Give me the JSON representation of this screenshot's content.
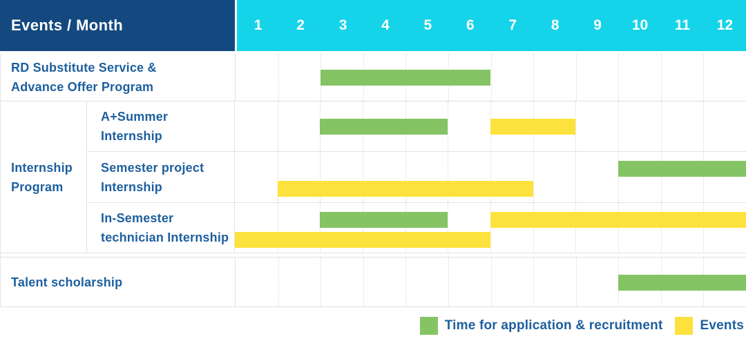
{
  "colors": {
    "header_navy": "#14497f",
    "header_cyan": "#15d3e9",
    "label_text": "#1d5f9e",
    "application": "#84c464",
    "event": "#fde23d",
    "grid_line": "#e2e2e2"
  },
  "header": {
    "title": "Events / Month",
    "months": [
      "1",
      "2",
      "3",
      "4",
      "5",
      "6",
      "7",
      "8",
      "9",
      "10",
      "11",
      "12"
    ]
  },
  "group": {
    "name": "Internship Program",
    "label_lines": [
      "Internship",
      "Program"
    ]
  },
  "legend": {
    "items": [
      {
        "kind": "application",
        "label": "Time for application & recruitment"
      },
      {
        "kind": "event",
        "label": "Events"
      }
    ]
  },
  "chart_data": {
    "type": "gantt",
    "x_axis": {
      "unit": "month",
      "ticks": [
        1,
        2,
        3,
        4,
        5,
        6,
        7,
        8,
        9,
        10,
        11,
        12
      ],
      "range": [
        1,
        12
      ]
    },
    "series_kinds": {
      "application": "Time for application & recruitment",
      "event": "Events"
    },
    "rows": [
      {
        "label": "RD Substitute Service & Advance Offer Program",
        "label_lines": [
          "RD Substitute Service &",
          "Advance Offer Program"
        ],
        "group": "",
        "bars": [
          {
            "kind": "application",
            "start": 3,
            "end": 6,
            "lane": "center"
          }
        ]
      },
      {
        "label": "A+Summer Internship",
        "label_lines": [
          "A+Summer",
          "Internship"
        ],
        "group": "Internship Program",
        "bars": [
          {
            "kind": "application",
            "start": 3,
            "end": 5,
            "lane": "center"
          },
          {
            "kind": "event",
            "start": 7,
            "end": 8,
            "lane": "center"
          }
        ]
      },
      {
        "label": "Semester project Internship",
        "label_lines": [
          "Semester project",
          "Internship"
        ],
        "group": "Internship Program",
        "bars": [
          {
            "kind": "application",
            "start": 10,
            "end": 12,
            "lane": "top"
          },
          {
            "kind": "event",
            "start": 2,
            "end": 7,
            "lane": "bottom"
          }
        ]
      },
      {
        "label": "In-Semester technician Internship",
        "label_lines": [
          "In-Semester",
          "technician Internship"
        ],
        "group": "Internship Program",
        "bars": [
          {
            "kind": "application",
            "start": 3,
            "end": 5,
            "lane": "top"
          },
          {
            "kind": "event",
            "start": 7,
            "end": 12,
            "lane": "top"
          },
          {
            "kind": "event",
            "start": 1,
            "end": 6,
            "lane": "bottom"
          }
        ]
      },
      {
        "label": "Talent scholarship",
        "label_lines": [
          "Talent scholarship"
        ],
        "group": "",
        "bars": [
          {
            "kind": "application",
            "start": 10,
            "end": 12,
            "lane": "center"
          }
        ]
      }
    ]
  }
}
